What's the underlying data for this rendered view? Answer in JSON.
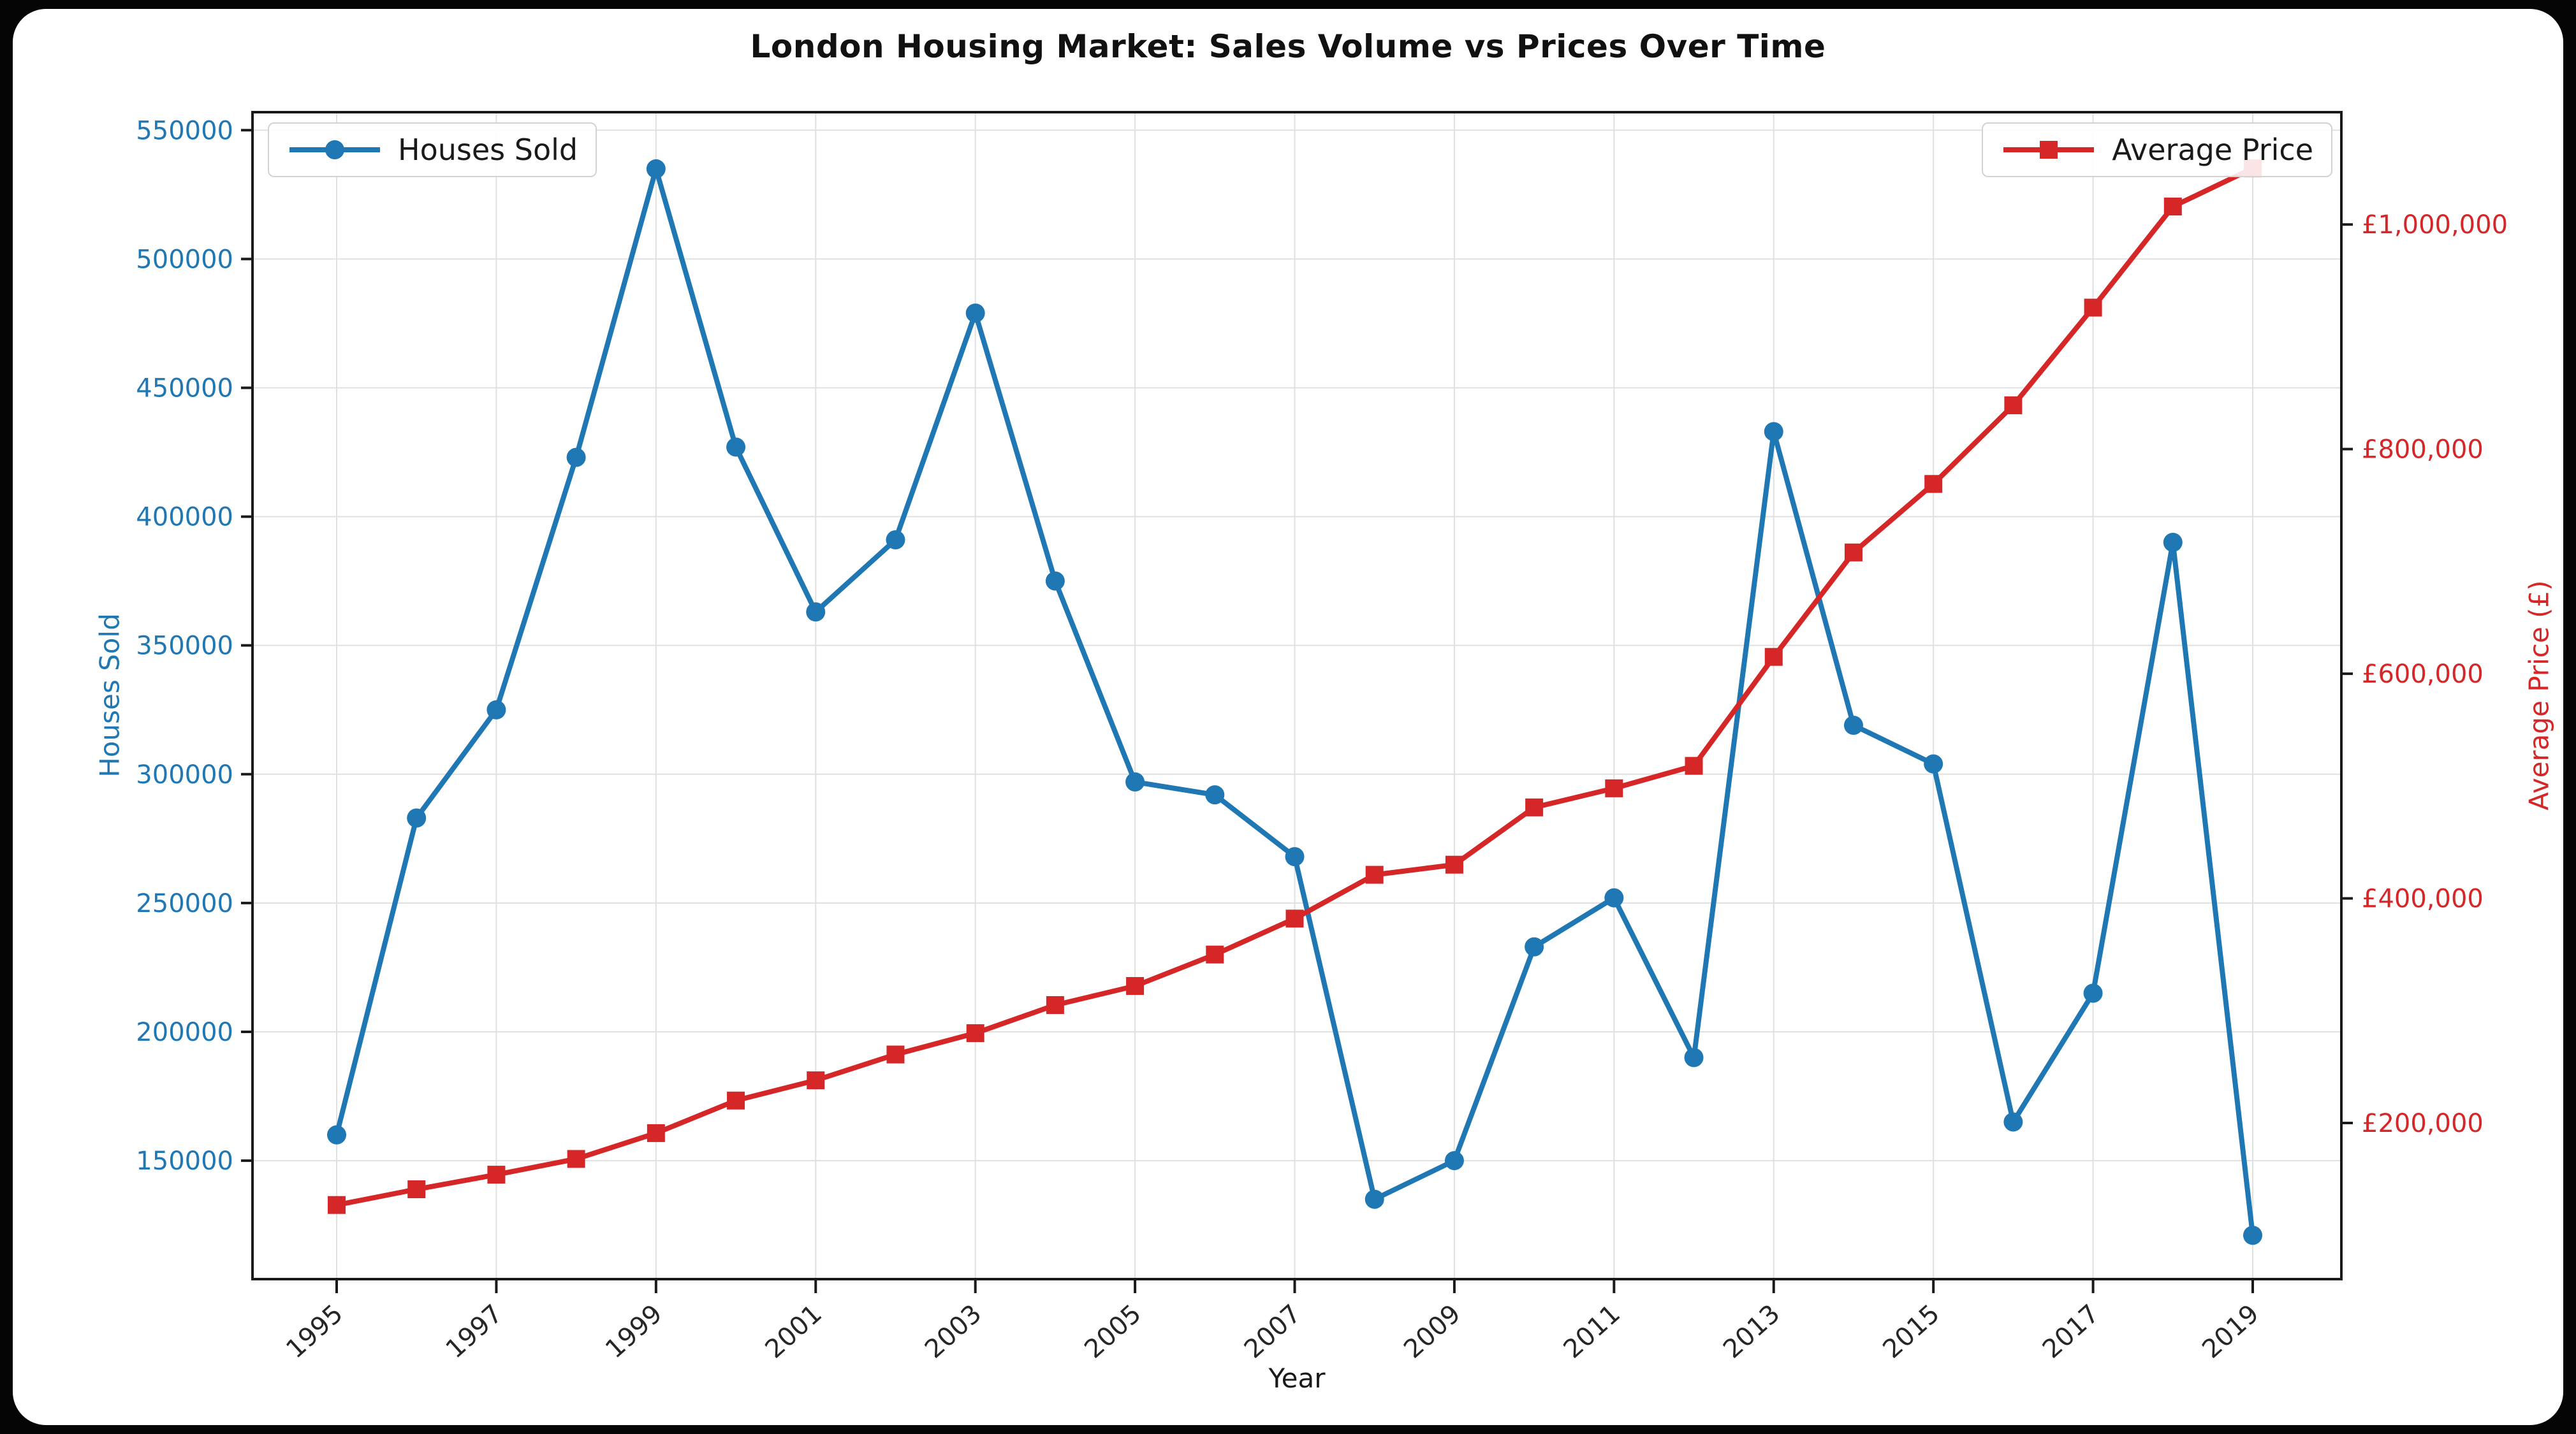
{
  "title": "London Housing Market: Sales Volume vs Prices Over Time",
  "legend_left_label": "Houses Sold",
  "legend_right_label": "Average Price",
  "colors": {
    "houses_sold": "#1f77b4",
    "average_price": "#d62728",
    "grid": "#e0e0e0",
    "spine": "#1a1a1a",
    "x_tick_label": "#262626",
    "figure_background": "#ffffff",
    "outer_background": "#050505"
  },
  "chart_data": {
    "type": "line",
    "title": "London Housing Market: Sales Volume vs Prices Over Time",
    "xlabel": "Year",
    "ylabel_left": "Houses Sold",
    "ylabel_right": "Average Price (£)",
    "grid": true,
    "legend_positions": [
      "upper left",
      "upper right"
    ],
    "x": [
      1995,
      1996,
      1997,
      1998,
      1999,
      2000,
      2001,
      2002,
      2003,
      2004,
      2005,
      2006,
      2007,
      2008,
      2009,
      2010,
      2011,
      2012,
      2013,
      2014,
      2015,
      2016,
      2017,
      2018,
      2019
    ],
    "series": [
      {
        "name": "Houses Sold",
        "axis": "left",
        "color": "#1f77b4",
        "marker": "circle",
        "values": [
          160000,
          283000,
          325000,
          423000,
          535000,
          427000,
          363000,
          391000,
          479000,
          375000,
          297000,
          292000,
          268000,
          135000,
          150000,
          233000,
          252000,
          190000,
          433000,
          319000,
          304000,
          165000,
          215000,
          390000,
          121000
        ]
      },
      {
        "name": "Average Price",
        "axis": "right",
        "color": "#d62728",
        "marker": "square",
        "values": [
          127000,
          141000,
          154000,
          168000,
          191000,
          220000,
          238000,
          261000,
          280000,
          305000,
          322000,
          350000,
          382000,
          421000,
          430000,
          481000,
          498000,
          518000,
          615000,
          708000,
          769000,
          839000,
          926000,
          1016000,
          1050000
        ]
      }
    ],
    "ylim_left": [
      104000,
      557000
    ],
    "ylim_right": [
      61000,
      1100000
    ],
    "yticks_left": {
      "values": [
        550000,
        500000,
        450000,
        400000,
        350000,
        300000,
        250000,
        200000,
        150000
      ],
      "labels": [
        "550000",
        "500000",
        "450000",
        "400000",
        "350000",
        "300000",
        "250000",
        "200000",
        "150000"
      ]
    },
    "yticks_right": {
      "values": [
        1000000,
        800000,
        600000,
        400000,
        200000
      ],
      "labels": [
        "£1,000,000",
        "£800,000",
        "£600,000",
        "£400,000",
        "£200,000"
      ]
    },
    "xticks": {
      "values": [
        1995,
        1997,
        1999,
        2001,
        2003,
        2005,
        2007,
        2009,
        2011,
        2013,
        2015,
        2017,
        2019
      ],
      "labels": [
        "1995",
        "1997",
        "1999",
        "2001",
        "2003",
        "2005",
        "2007",
        "2009",
        "2011",
        "2013",
        "2015",
        "2017",
        "2019"
      ]
    }
  }
}
